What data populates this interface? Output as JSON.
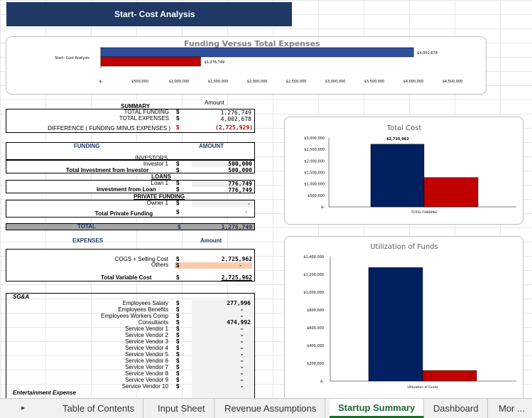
{
  "sheet_title": "Start- Cost Analysis",
  "funding_chart": {
    "title": "Funding Versus Total Expenses",
    "category_label": "Start- Cost Analysis",
    "tick_labels": [
      "$-",
      "$500,000",
      "$1,000,000",
      "$1,500,000",
      "$2,000,000",
      "$2,500,000",
      "$3,000,000",
      "$3,500,000",
      "$4,000,000",
      "$4,500,000"
    ],
    "bar_labels": [
      "$4,002,678",
      "$1,276,749"
    ],
    "colors": [
      "#2f4f9c",
      "#c00000"
    ]
  },
  "chart_data": [
    {
      "type": "bar",
      "orientation": "horizontal",
      "title": "Funding Versus Total Expenses",
      "categories": [
        "Start- Cost Analysis"
      ],
      "series": [
        {
          "values": [
            4002678
          ]
        },
        {
          "values": [
            1276749
          ]
        }
      ],
      "xlim": [
        0,
        4500000
      ]
    },
    {
      "type": "bar",
      "title": "Total Cost",
      "categories": [
        "TOTAL FUNDING"
      ],
      "series": [
        {
          "values": [
            2725962
          ]
        },
        {
          "values": [
            1276749
          ]
        }
      ],
      "ylim": [
        0,
        3000000
      ],
      "tick_labels": [
        "$-",
        "$500,000",
        "$1,000,000",
        "$1,500,000",
        "$2,000,000",
        "$2,500,000",
        "$3,000,000"
      ],
      "data_label": "$2,725,962"
    },
    {
      "type": "bar",
      "title": "Utilization of Funds",
      "categories": [
        "Utilization of Funds"
      ],
      "series": [
        {
          "values": [
            1276749
          ]
        },
        {
          "values": [
            118000
          ]
        }
      ],
      "ylim": [
        0,
        1400000
      ],
      "tick_labels": [
        "$-",
        "$200,000",
        "$400,000",
        "$600,000",
        "$800,000",
        "$1,000,000",
        "$1,200,000",
        "$1,400,000"
      ]
    }
  ],
  "summary": {
    "title": "SUMMARY",
    "amount_header": "Amount",
    "rows": [
      {
        "label": "TOTAL FUNDING",
        "dollar": "$",
        "value": "1,276,749"
      },
      {
        "label": "TOTAL EXPENSES",
        "dollar": "$",
        "value": "4,002,678"
      },
      {
        "label": "DIFFERENCE ( FUNDING MINUS EXPENSES )",
        "dollar": "$",
        "value": "(2,725,929)"
      }
    ]
  },
  "funding": {
    "header": "FUNDING",
    "amount_header": "AMOUNT",
    "investors_label": "INVESTORS",
    "investor1": {
      "label": "Investor 1",
      "dollar": "$",
      "value": "500,000"
    },
    "total_investor": {
      "label": "Total Investment from Investor",
      "dollar": "$",
      "value": "500,000"
    },
    "loans_label": "LOANS",
    "loan1": {
      "label": "Loan 1",
      "dollar": "$",
      "value": "776,749"
    },
    "total_loan": {
      "label": "Investment from Loan",
      "dollar": "$",
      "value": "776,749"
    },
    "private_label": "PRIVATE FUNDING",
    "owner1": {
      "label": "Owner 1",
      "dollar": "$",
      "value": "-"
    },
    "total_private": {
      "label": "Total Private Funding",
      "dollar": "$",
      "value": "-"
    },
    "total": {
      "label": "TOTAL",
      "dollar": "$",
      "value": "1,276,749"
    }
  },
  "expenses": {
    "header": "EXPENSES",
    "amount_header": "Amount",
    "cogs": {
      "label": "COGS + Selling Cost",
      "dollar": "$",
      "value": "2,725,962"
    },
    "others": {
      "label": "Others",
      "dollar": "$",
      "value": "-"
    },
    "total_variable": {
      "label": "Total Variable Cost",
      "dollar": "$",
      "value": "2,725,962"
    }
  },
  "sga": {
    "header": "SG&A",
    "rows": [
      {
        "label": "Employees Salary",
        "dollar": "$",
        "value": "277,996"
      },
      {
        "label": "Employees Benefits",
        "dollar": "$",
        "value": "-"
      },
      {
        "label": "Employees Workers Comp",
        "dollar": "$",
        "value": "-"
      },
      {
        "label": "Consultants",
        "dollar": "$",
        "value": "474,992"
      },
      {
        "label": "Service Vendor 1",
        "dollar": "$",
        "value": "-"
      },
      {
        "label": "Service Vendor 2",
        "dollar": "$",
        "value": "-"
      },
      {
        "label": "Service Vendor 3",
        "dollar": "$",
        "value": "-"
      },
      {
        "label": "Service Vendor 4",
        "dollar": "$",
        "value": "-"
      },
      {
        "label": "Service Vendor 5",
        "dollar": "$",
        "value": "-"
      },
      {
        "label": "Service Vendor 6",
        "dollar": "$",
        "value": "-"
      },
      {
        "label": "Service Vendor 7",
        "dollar": "$",
        "value": "-"
      },
      {
        "label": "Service Vendor 8",
        "dollar": "$",
        "value": "-"
      },
      {
        "label": "Service Vendor 9",
        "dollar": "$",
        "value": "-"
      },
      {
        "label": "Service Vendor 10",
        "dollar": "$",
        "value": "-"
      }
    ],
    "entertainment_label": "Entertainment Expense"
  },
  "total_cost_chart": {
    "title": "Total Cost",
    "x_label": "TOTAL FUNDING",
    "colors": [
      "#002060",
      "#c00000"
    ]
  },
  "utilization_chart": {
    "title": "Utilization of Funds",
    "x_label": "Utilization of Funds",
    "colors": [
      "#002060",
      "#c00000"
    ]
  },
  "tabs": {
    "arrow": "▸",
    "items": [
      "Table of Contents",
      "Input Sheet",
      "Revenue Assumptions",
      "Startup Summary",
      "Dashboard",
      "Mor ..."
    ],
    "active_index": 3
  }
}
